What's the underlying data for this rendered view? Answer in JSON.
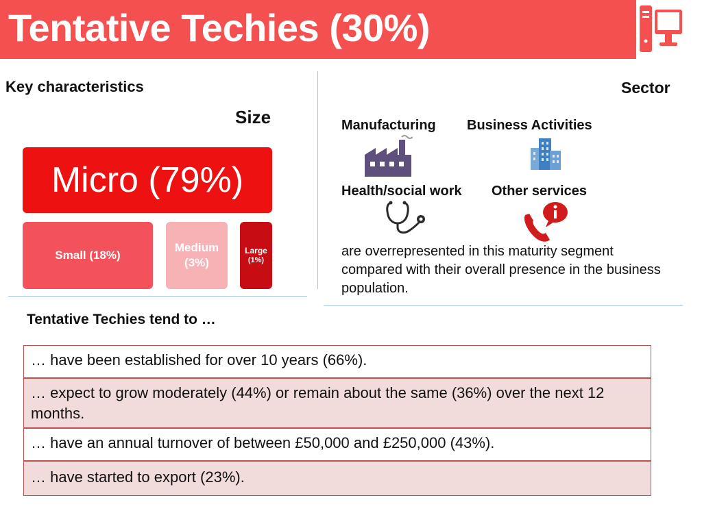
{
  "title": "Tentative Techies (30%)",
  "icons": {
    "title_icon": "desktop-computer-icon",
    "manufacturing": "factory-icon",
    "business_activities": "office-buildings-icon",
    "health_social_work": "stethoscope-icon",
    "other_services": "phone-info-icon"
  },
  "colors": {
    "title_bar": "#f45050",
    "micro": "#ee1111",
    "small": "#f4525b",
    "medium": "#f7b2b6",
    "large": "#c80c14",
    "table_border": "#c0504d",
    "table_shade": "#f2dcdb",
    "factory": "#5f4f7d",
    "buildings": "#4a86c5",
    "phone": "#d01c1c"
  },
  "key_characteristics": "Key characteristics",
  "size": {
    "label": "Size",
    "micro": "Micro (79%)",
    "small": "Small (18%)",
    "medium_name": "Medium",
    "medium_pct": "(3%)",
    "large_name": "Large",
    "large_pct": "(1%)"
  },
  "sector": {
    "label": "Sector",
    "items": [
      "Manufacturing",
      "Business Activities",
      "Health/social work",
      "Other services"
    ],
    "note": "are overrepresented in this maturity segment compared with their overall presence in the business population."
  },
  "tend": {
    "title": "Tentative Techies tend to …",
    "rows": [
      "… have been established for over 10 years (66%).",
      "… expect to grow moderately (44%) or remain about the same (36%) over the next 12 months.",
      "… have an annual turnover of between £50,000 and £250,000 (43%).",
      "… have started to export (23%)."
    ]
  }
}
